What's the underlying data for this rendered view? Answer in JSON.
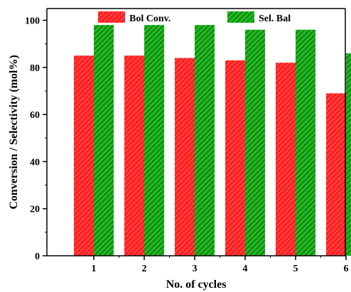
{
  "chart_data": {
    "type": "bar",
    "title": "",
    "xlabel": "No. of cycles",
    "ylabel": "Conversion / Selectivity (mol%)",
    "categories": [
      "1",
      "2",
      "3",
      "4",
      "5",
      "6"
    ],
    "series": [
      {
        "name": "Bol Conv.",
        "values": [
          85,
          85,
          84,
          83,
          82,
          69
        ],
        "color": "#ff1f1f",
        "hatch": "#ff8080"
      },
      {
        "name": "Sel. Bal",
        "values": [
          98,
          98,
          98,
          96,
          96,
          86
        ],
        "color": "#0a9a0a",
        "hatch": "#7ee07e"
      }
    ],
    "ylim": [
      0,
      105
    ],
    "yticks": [
      0,
      20,
      40,
      60,
      80,
      100
    ],
    "grid": false,
    "legend_position": "top",
    "bar_pattern": "diagonal-hatch"
  }
}
